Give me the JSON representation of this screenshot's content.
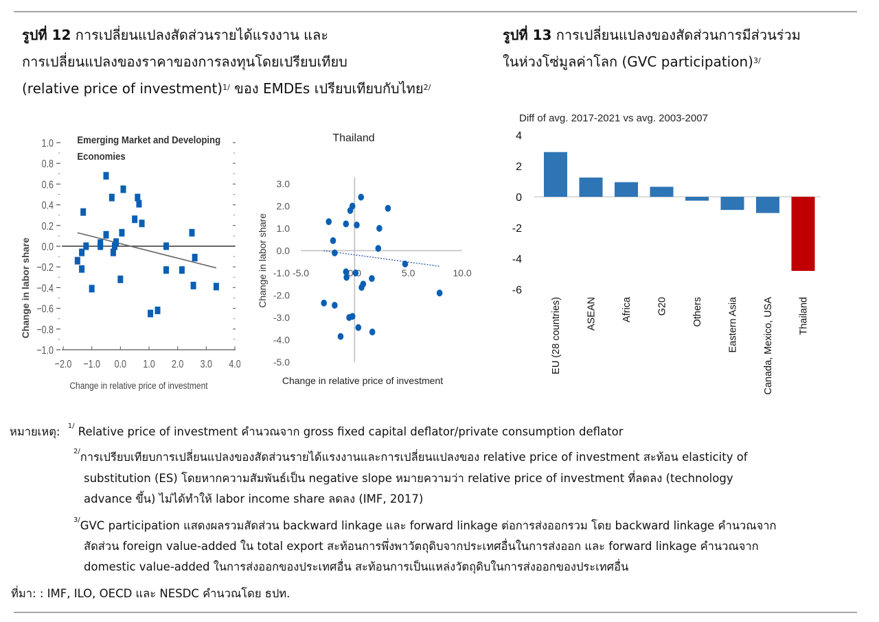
{
  "figure12": {
    "title_bold": "รูปที่ 12",
    "title_line1": " การเปลี่ยนแปลงสัดส่วนรายได้แรงงาน และ",
    "title_line2": "การเปลี่ยนแปลงของราคาของการลงทุนโดยเปรียบเทียบ",
    "title_line3": "(relative price of investment)",
    "title_sup1": "1/",
    "title_line3b": " ของ EMDEs เปรียบเทียบกับไทย",
    "title_sup2": "2/"
  },
  "figure13": {
    "title_bold": "รูปที่ 13",
    "title_line1": " การเปลี่ยนแปลงของสัดส่วนการมีส่วนร่วม",
    "title_line2": "ในห่วงโซ่มูลค่าโลก (GVC participation)",
    "title_sup": "3/"
  },
  "chart_data": [
    {
      "type": "scatter",
      "title": "Emerging Market and Developing Economies",
      "xlabel": "Change in relative price of investment",
      "ylabel": "Change in labor share",
      "xlim": [
        -2.0,
        4.0
      ],
      "ylim": [
        -1.0,
        1.0
      ],
      "xticks": [
        "−2.0",
        "−1.0",
        "0.0",
        "1.0",
        "2.0",
        "3.0",
        "4.0"
      ],
      "yticks": [
        "1.0",
        "0.8",
        "0.6",
        "0.4",
        "0.2",
        "0.0",
        "−0.2",
        "−0.4",
        "−0.6",
        "−0.8",
        "−1.0"
      ],
      "color": "#0a5fb4",
      "marker": "square",
      "points": [
        [
          -1.5,
          -0.14
        ],
        [
          -1.35,
          -0.06
        ],
        [
          -1.35,
          -0.22
        ],
        [
          -1.3,
          0.33
        ],
        [
          -1.2,
          0.0
        ],
        [
          -1.0,
          -0.41
        ],
        [
          -0.7,
          0.03
        ],
        [
          -0.7,
          0.0
        ],
        [
          -0.5,
          0.11
        ],
        [
          -0.5,
          0.68
        ],
        [
          -0.3,
          0.47
        ],
        [
          -0.25,
          -0.06
        ],
        [
          -0.2,
          0.0
        ],
        [
          -0.15,
          0.04
        ],
        [
          0.0,
          -0.32
        ],
        [
          0.05,
          0.13
        ],
        [
          0.1,
          0.55
        ],
        [
          0.5,
          0.26
        ],
        [
          0.6,
          0.47
        ],
        [
          0.65,
          0.41
        ],
        [
          0.75,
          0.22
        ],
        [
          1.05,
          -0.65
        ],
        [
          1.3,
          -0.62
        ],
        [
          1.6,
          0.0
        ],
        [
          1.6,
          -0.23
        ],
        [
          2.15,
          -0.23
        ],
        [
          2.5,
          0.13
        ],
        [
          2.55,
          -0.38
        ],
        [
          2.6,
          -0.11
        ],
        [
          3.35,
          -0.39
        ]
      ],
      "trendline": {
        "x": [
          -1.5,
          3.35
        ],
        "y": [
          0.13,
          -0.21
        ]
      }
    },
    {
      "type": "scatter",
      "title": "Thailand",
      "xlabel": "Change in relative price of investment",
      "ylabel": "Change in labor share",
      "xlim": [
        -5.0,
        10.0
      ],
      "ylim": [
        -5.0,
        3.0
      ],
      "xticks": [
        "-5.0",
        "0.0",
        "5.0",
        "10.0"
      ],
      "yticks": [
        "3.0",
        "2.0",
        "1.0",
        "0.0",
        "-1.0",
        "-2.0",
        "-3.0",
        "-4.0",
        "-5.0"
      ],
      "color": "#0a5fb4",
      "marker": "circle",
      "trendline_style": "dotted",
      "points": [
        [
          0.6,
          2.4
        ],
        [
          -0.2,
          2.0
        ],
        [
          -0.4,
          1.8
        ],
        [
          3.1,
          1.9
        ],
        [
          -2.4,
          1.3
        ],
        [
          -0.8,
          1.2
        ],
        [
          0.2,
          1.15
        ],
        [
          2.3,
          1.0
        ],
        [
          -2.0,
          0.45
        ],
        [
          2.2,
          0.1
        ],
        [
          -1.85,
          -0.1
        ],
        [
          4.7,
          -0.6
        ],
        [
          -0.8,
          -0.95
        ],
        [
          0.1,
          -1.0
        ],
        [
          -0.75,
          -1.2
        ],
        [
          1.6,
          -1.25
        ],
        [
          0.8,
          -1.5
        ],
        [
          0.65,
          -1.65
        ],
        [
          7.9,
          -1.9
        ],
        [
          -2.85,
          -2.35
        ],
        [
          -1.85,
          -2.45
        ],
        [
          -0.2,
          -2.95
        ],
        [
          -0.5,
          -3.0
        ],
        [
          0.35,
          -3.45
        ],
        [
          1.65,
          -3.65
        ],
        [
          -1.3,
          -3.85
        ]
      ],
      "trendline": {
        "x": [
          -2.9,
          7.9
        ],
        "y": [
          0.0,
          -0.7
        ]
      }
    },
    {
      "type": "bar",
      "title": "Diff of avg. 2017-2021  vs avg. 2003-2007",
      "categories": [
        "EU (28 countries)",
        "ASEAN",
        "Africa",
        "G20",
        "Others",
        "Eastern Asia",
        "Canada, Mexico, USA",
        "Thailand"
      ],
      "values": [
        2.9,
        1.25,
        0.95,
        0.65,
        -0.25,
        -0.85,
        -1.05,
        -4.8
      ],
      "colors": [
        "#2e75b6",
        "#2e75b6",
        "#2e75b6",
        "#2e75b6",
        "#2e75b6",
        "#2e75b6",
        "#2e75b6",
        "#c00000"
      ],
      "ylim": [
        -6,
        4
      ],
      "yticks": [
        "4",
        "2",
        "0",
        "-2",
        "-4",
        "-6"
      ]
    }
  ],
  "notes": {
    "label": "หมายเหตุ:",
    "n1_sup": "1/",
    "n1": "Relative price of investment คำนวณจาก gross fixed capital deflator/private consumption deflator",
    "n2_sup": "2/",
    "n2_l1": "การเปรียบเทียบการเปลี่ยนแปลงของสัดส่วนรายได้แรงงานและการเปลี่ยนแปลงของ relative price of investment สะท้อน elasticity of",
    "n2_l2": "substitution (ES) โดยหากความสัมพันธ์เป็น negative slope หมายความว่า relative price of investment ที่ลดลง (technology",
    "n2_l3": "advance ขึ้น) ไม่ได้ทำให้ labor income share ลดลง (IMF, 2017)",
    "n3_sup": "3/",
    "n3_l1": "GVC participation แสดงผลรวมสัดส่วน backward linkage และ forward linkage ต่อการส่งออกรวม โดย backward linkage คำนวณจาก",
    "n3_l2": "สัดส่วน foreign value-added ใน total export สะท้อนการพึ่งพาวัตถุดิบจากประเทศอื่นในการส่งออก และ forward linkage คำนวณจาก",
    "n3_l3": "domestic value-added ในการส่งออกของประเทศอื่น สะท้อนการเป็นแหล่งวัตถุดิบในการส่งออกของประเทศอื่น",
    "source": "ที่มา: : IMF, ILO, OECD และ NESDC คำนวณโดย ธปท."
  }
}
